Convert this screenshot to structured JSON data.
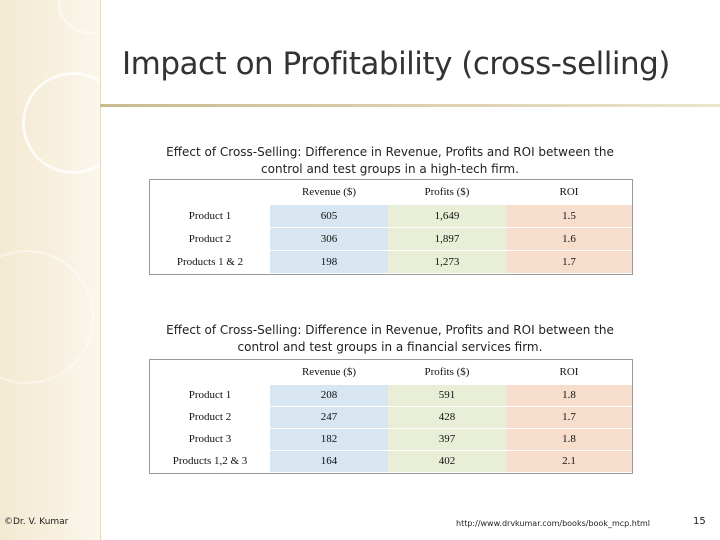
{
  "title": "Impact on Profitability (cross-selling)",
  "table1": {
    "caption": "Effect of Cross-Selling: Difference in Revenue, Profits and ROI between the control and test groups in a high-tech firm.",
    "headers": [
      "",
      "Revenue ($)",
      "Profits ($)",
      "ROI"
    ],
    "rows": [
      [
        "Product 1",
        "605",
        "1,649",
        "1.5"
      ],
      [
        "Product 2",
        "306",
        "1,897",
        "1.6"
      ],
      [
        "Products 1 & 2",
        "198",
        "1,273",
        "1.7"
      ]
    ]
  },
  "table2": {
    "caption": "Effect of Cross-Selling: Difference in Revenue, Profits and ROI between the control and test groups in a financial services firm.",
    "headers": [
      "",
      "Revenue ($)",
      "Profits ($)",
      "ROI"
    ],
    "rows": [
      [
        "Product 1",
        "208",
        "591",
        "1.8"
      ],
      [
        "Product 2",
        "247",
        "428",
        "1.7"
      ],
      [
        "Product 3",
        "182",
        "397",
        "1.8"
      ],
      [
        "Products 1,2 & 3",
        "164",
        "402",
        "2.1"
      ]
    ]
  },
  "footer": {
    "author": "©Dr. V. Kumar",
    "url": "http://www.drvkumar.com/books/book_mcp.html",
    "page_number": "15"
  },
  "colors": {
    "revenue_fill": "#d7e6f0",
    "profits_fill": "#e8efd6",
    "roi_fill": "#f6ddcc",
    "sidebar": "#f3ead3"
  }
}
